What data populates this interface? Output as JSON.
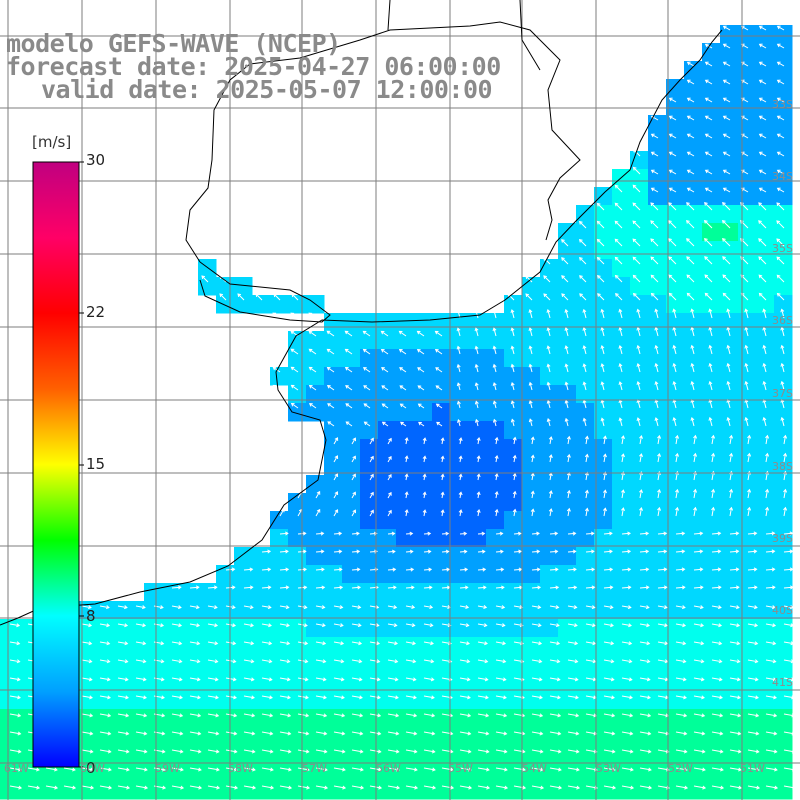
{
  "title": {
    "model": "modelo GEFS-WAVE (NCEP)",
    "forecast": "forecast date: 2025-04-27 06:00:00",
    "valid": "valid date: 2025-05-07 12:00:00"
  },
  "colorbar": {
    "unit": "[m/s]",
    "ticks": [
      "30",
      "22",
      "15",
      "8",
      "0"
    ],
    "range": [
      0,
      30
    ],
    "stops": [
      "#0000ff",
      "#00a0ff",
      "#00ffff",
      "#00ff00",
      "#ffff00",
      "#ff6000",
      "#ff0000",
      "#ff0066",
      "#c00080"
    ]
  },
  "grid_labels": {
    "right": [
      "33S",
      "34S",
      "35S",
      "36S",
      "37S",
      "38S",
      "39S",
      "40S",
      "41S"
    ],
    "bottom": [
      "61W",
      "60W",
      "59W",
      "58W",
      "57W",
      "56W",
      "55W",
      "54W",
      "53W",
      "52W",
      "51W"
    ]
  },
  "field": {
    "variable": "wind speed",
    "palette": [
      "#0022ff",
      "#0066ff",
      "#00a0ff",
      "#00d8ff",
      "#00ffee",
      "#00ff99",
      "#00ff44"
    ],
    "arrow_color": "#ffffff"
  }
}
